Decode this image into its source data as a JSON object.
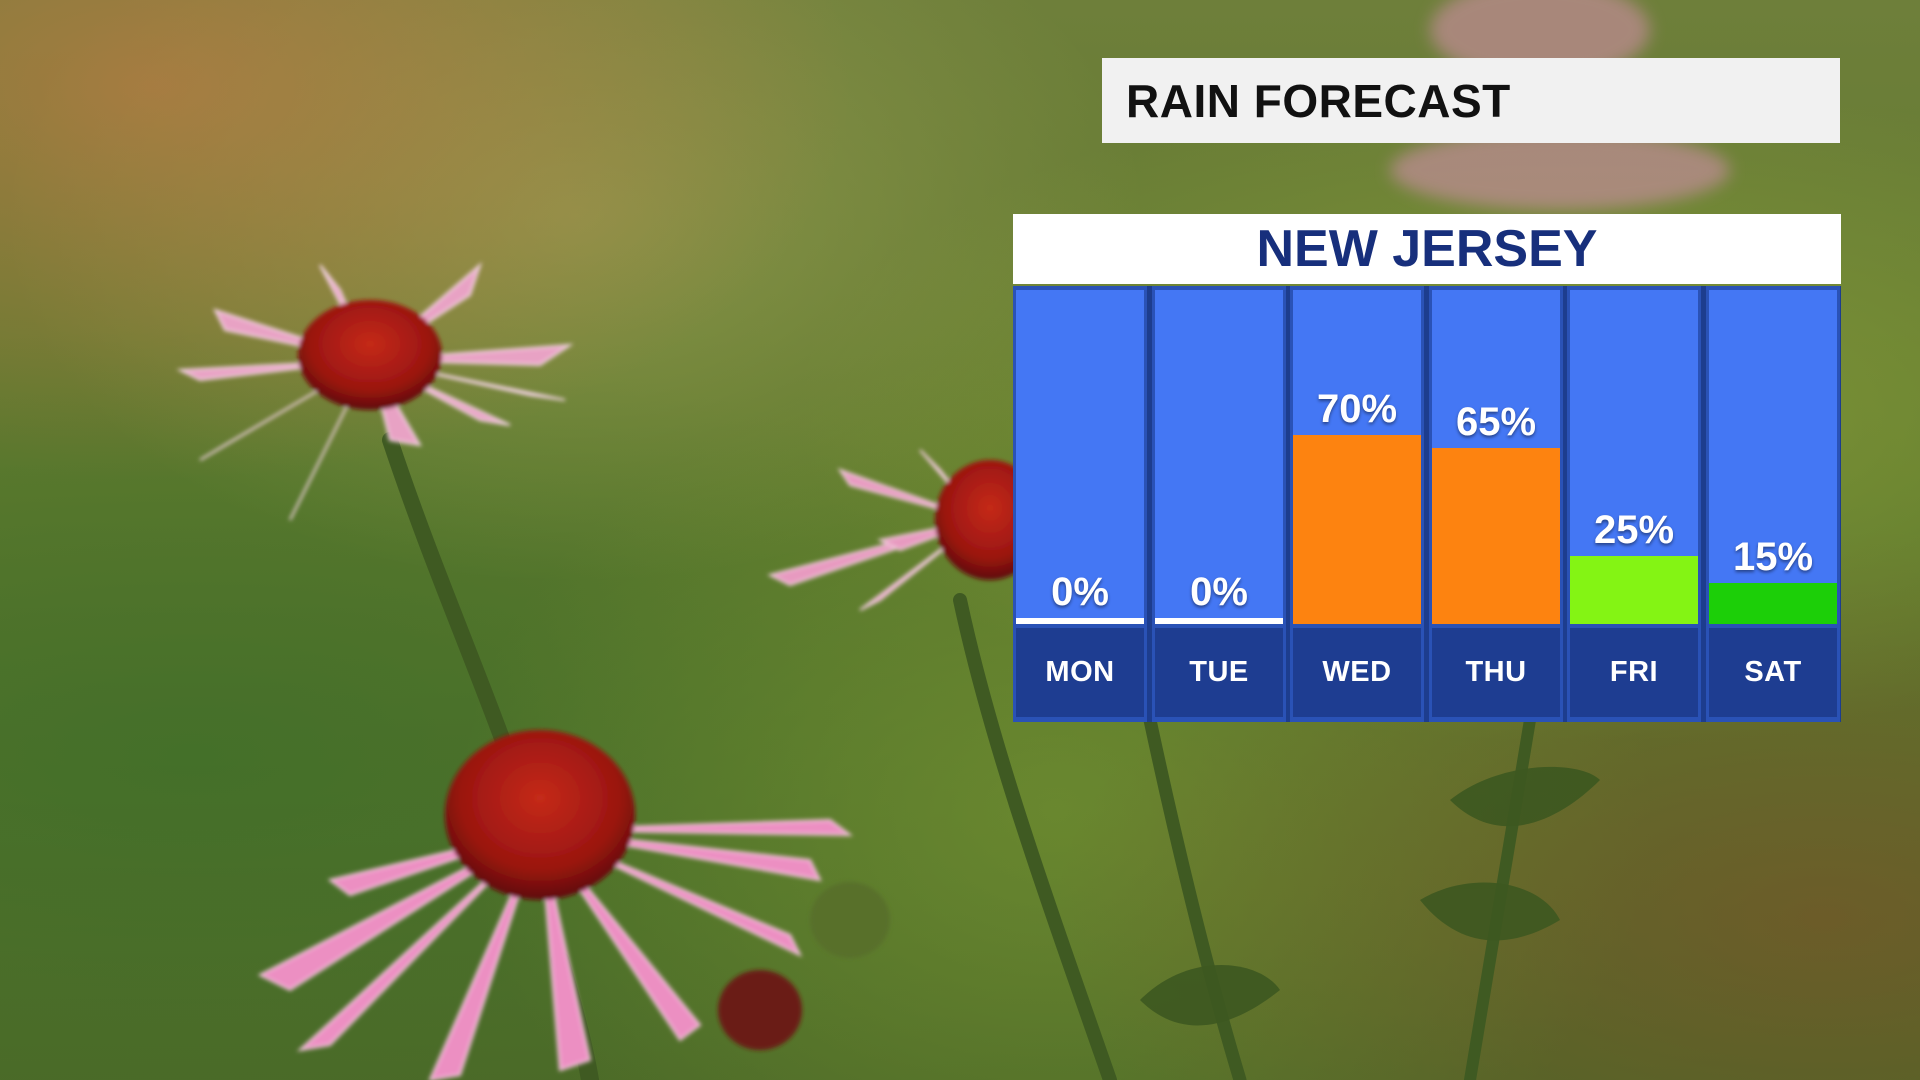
{
  "title": "RAIN FORECAST",
  "region": "NEW JERSEY",
  "chart_data": {
    "type": "bar",
    "categories": [
      "MON",
      "TUE",
      "WED",
      "THU",
      "FRI",
      "SAT"
    ],
    "values": [
      0,
      0,
      70,
      65,
      25,
      15
    ],
    "value_labels": [
      "0%",
      "0%",
      "70%",
      "65%",
      "25%",
      "15%"
    ],
    "bar_colors": [
      "#ffffff",
      "#ffffff",
      "#fd8310",
      "#fd8310",
      "#84f414",
      "#1ccf08"
    ],
    "ylim": [
      0,
      100
    ],
    "grid": false,
    "legend": "none"
  },
  "colors": {
    "header_text": "#172f7c",
    "column_bg": "#4477f4",
    "day_bg": "#1e3d91",
    "title_bg": "#f1f1f1"
  }
}
